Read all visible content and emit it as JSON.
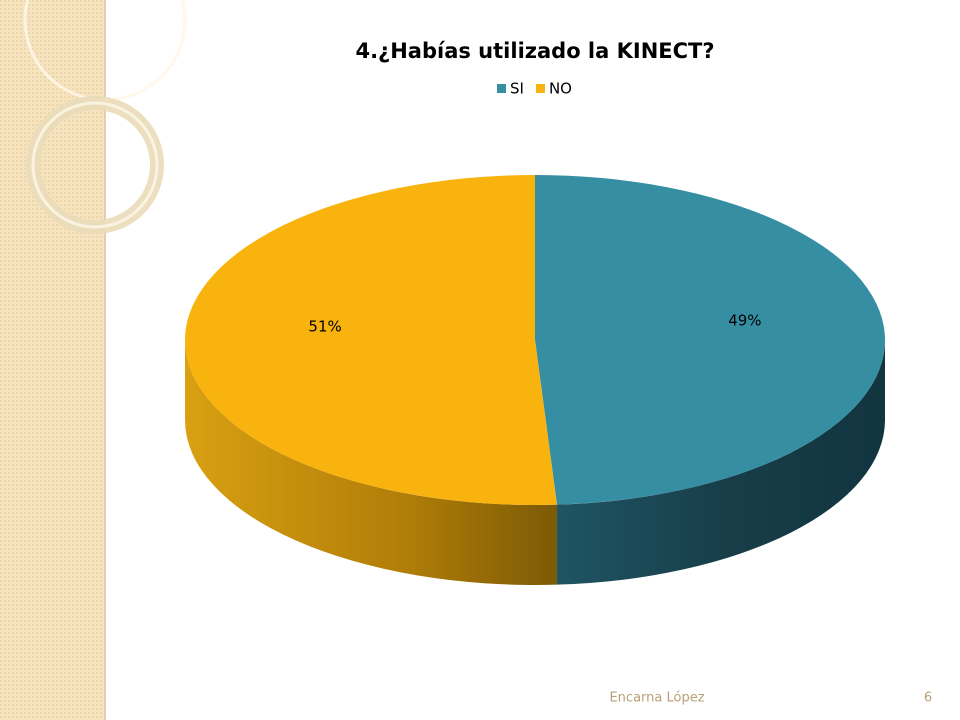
{
  "chart_data": {
    "type": "pie3d",
    "title": "4.¿Habías utilizado la KINECT?",
    "categories": [
      "SI",
      "NO"
    ],
    "values": [
      49,
      51
    ],
    "value_labels": [
      "49%",
      "51%"
    ],
    "colors": [
      "#368ea3",
      "#f9b30e"
    ],
    "legend": "top"
  },
  "footer": {
    "author": "Encarna López",
    "page": 6
  }
}
